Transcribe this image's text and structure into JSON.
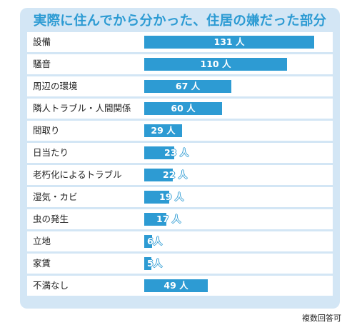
{
  "title": "実際に住んでから分かった、住居の嫌だった部分",
  "note": "複数回答可",
  "colors": {
    "bar": "#2d9bd3",
    "panel": "#d3e6f5",
    "title": "#2d9bd3"
  },
  "chart_data": {
    "type": "bar",
    "orientation": "horizontal",
    "title": "実際に住んでから分かった、住居の嫌だった部分",
    "categories": [
      "設備",
      "騒音",
      "周辺の環境",
      "隣人トラブル・人間関係",
      "間取り",
      "日当たり",
      "老朽化によるトラブル",
      "湿気・カビ",
      "虫の発生",
      "立地",
      "家賃",
      "不満なし"
    ],
    "values": [
      131,
      110,
      67,
      60,
      29,
      23,
      22,
      19,
      17,
      6,
      5,
      49
    ],
    "value_labels": [
      "131 人",
      "110 人",
      "67 人",
      "60 人",
      "29 人",
      "23 人",
      "22 人",
      "19 人",
      "17 人",
      "6人",
      "5人",
      "49 人"
    ],
    "unit": "人",
    "grid": false,
    "legend": "none"
  }
}
